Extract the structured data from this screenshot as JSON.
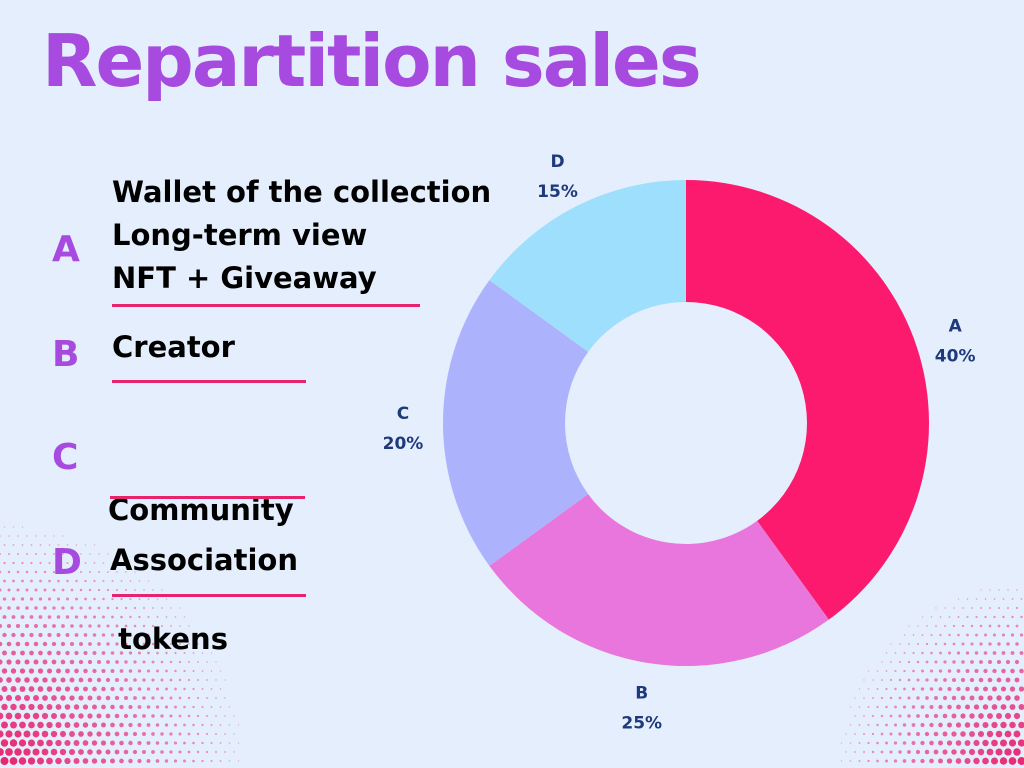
{
  "title": "Repartition sales",
  "legend": [
    {
      "letter": "A",
      "lines": [
        "Wallet of the collection",
        "Long-term view",
        "NFT + Giveaway"
      ]
    },
    {
      "letter": "B",
      "lines": [
        "Creator"
      ]
    },
    {
      "letter": "C",
      "lines": [
        "Community",
        " tokens"
      ]
    },
    {
      "letter": "D",
      "lines": [
        "Association"
      ]
    }
  ],
  "colors": {
    "background": "#e4eefc",
    "title": "#a64ae0",
    "underline": "#e8236e",
    "dots": "#e8236e",
    "label_text": "#1e3a7a"
  },
  "chart_data": {
    "type": "pie",
    "variant": "donut",
    "title": "",
    "series": [
      {
        "label": "A",
        "value": 40,
        "value_label": "40%",
        "color": "#fc1a6e"
      },
      {
        "label": "B",
        "value": 25,
        "value_label": "25%",
        "color": "#e876dc"
      },
      {
        "label": "C",
        "value": 20,
        "value_label": "20%",
        "color": "#acb2fc"
      },
      {
        "label": "D",
        "value": 15,
        "value_label": "15%",
        "color": "#9ddffc"
      }
    ],
    "start": "top",
    "direction": "clockwise",
    "legend": "none"
  }
}
